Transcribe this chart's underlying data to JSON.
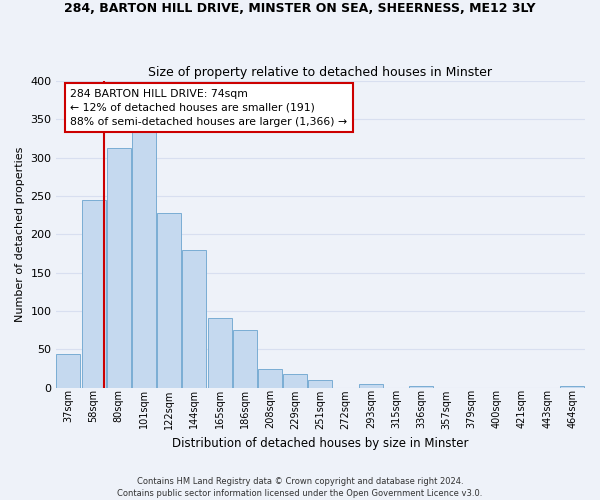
{
  "title": "284, BARTON HILL DRIVE, MINSTER ON SEA, SHEERNESS, ME12 3LY",
  "subtitle": "Size of property relative to detached houses in Minster",
  "xlabel": "Distribution of detached houses by size in Minster",
  "ylabel": "Number of detached properties",
  "bar_labels": [
    "37sqm",
    "58sqm",
    "80sqm",
    "101sqm",
    "122sqm",
    "144sqm",
    "165sqm",
    "186sqm",
    "208sqm",
    "229sqm",
    "251sqm",
    "272sqm",
    "293sqm",
    "315sqm",
    "336sqm",
    "357sqm",
    "379sqm",
    "400sqm",
    "421sqm",
    "443sqm",
    "464sqm"
  ],
  "bar_values": [
    44,
    245,
    313,
    335,
    228,
    180,
    91,
    75,
    25,
    18,
    10,
    0,
    5,
    0,
    2,
    0,
    0,
    0,
    0,
    0,
    2
  ],
  "bar_color": "#c5d9ef",
  "bar_edge_color": "#7aadd4",
  "vline_color": "#cc0000",
  "vline_x": 1.42,
  "ylim": [
    0,
    400
  ],
  "yticks": [
    0,
    50,
    100,
    150,
    200,
    250,
    300,
    350,
    400
  ],
  "annotation_title": "284 BARTON HILL DRIVE: 74sqm",
  "annotation_line1": "← 12% of detached houses are smaller (191)",
  "annotation_line2": "88% of semi-detached houses are larger (1,366) →",
  "annotation_box_color": "#ffffff",
  "annotation_box_edge": "#cc0000",
  "footer1": "Contains HM Land Registry data © Crown copyright and database right 2024.",
  "footer2": "Contains public sector information licensed under the Open Government Licence v3.0.",
  "background_color": "#eef2f9",
  "grid_color": "#d8dff0"
}
